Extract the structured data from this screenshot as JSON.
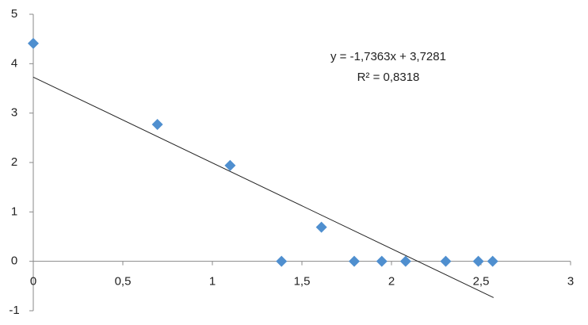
{
  "chart_data": {
    "type": "scatter",
    "x": [
      0,
      0.693,
      1.099,
      1.386,
      1.609,
      1.792,
      1.946,
      2.079,
      2.303,
      2.485,
      2.565
    ],
    "series": [
      {
        "color": "#4f8fcf",
        "values": [
          4.41,
          2.77,
          1.94,
          0,
          0.69,
          0,
          0,
          0,
          0,
          0,
          0
        ]
      }
    ],
    "xlim": [
      0,
      3
    ],
    "xticks": [
      0,
      {
        "value": 0.5,
        "label": "0,5"
      },
      1,
      {
        "value": 1.5,
        "label": "1,5"
      },
      2,
      {
        "value": 2.5,
        "label": "2,5"
      },
      3
    ],
    "ylim": [
      -1,
      5
    ],
    "yticks": [
      -1,
      0,
      1,
      2,
      3,
      4,
      5
    ],
    "grid": false,
    "trendline": {
      "equation": "y = -1,7363x + 3,7281",
      "r_squared": "R² = 0,8318",
      "slope": -1.7363,
      "intercept": 3.7281,
      "xlim": [
        0,
        2.57
      ]
    }
  }
}
